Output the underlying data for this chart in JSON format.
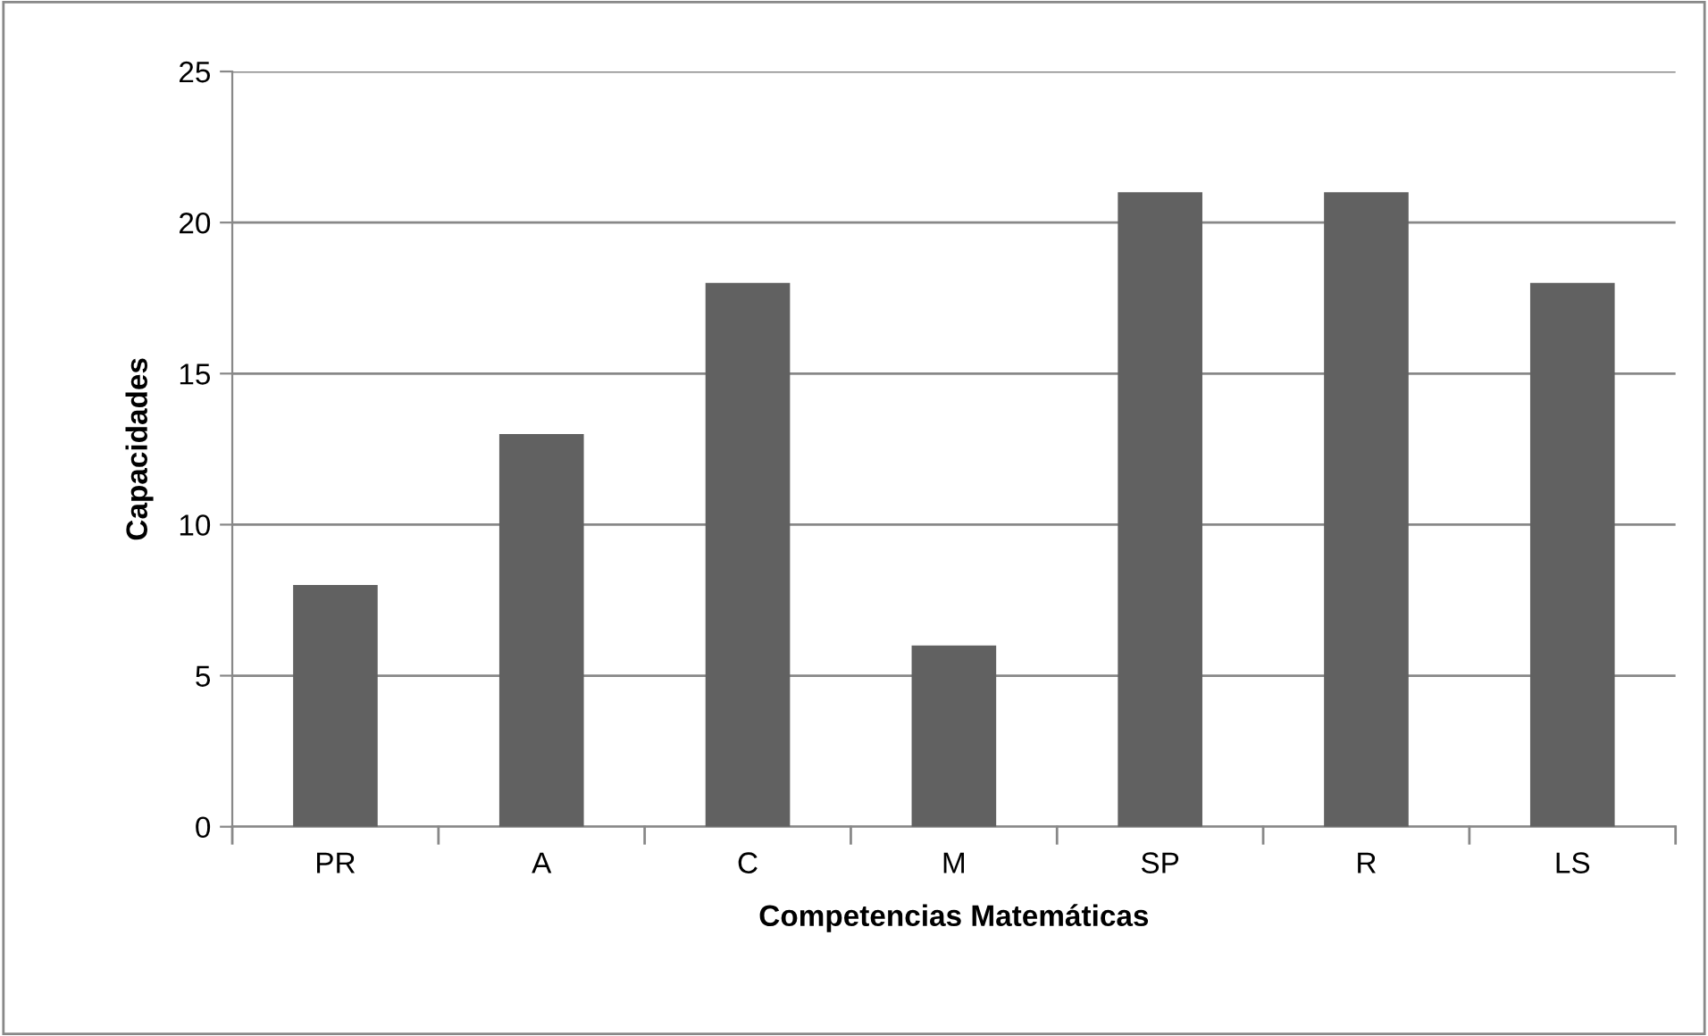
{
  "chart_data": {
    "type": "bar",
    "xlabel": "Competencias Matemáticas",
    "ylabel": "Capacidades",
    "categories": [
      "PR",
      "A",
      "C",
      "M",
      "SP",
      "R",
      "LS"
    ],
    "values": [
      8,
      13,
      18,
      6,
      21,
      21,
      18
    ],
    "color": "#616161",
    "ylim": [
      0,
      25
    ],
    "yticks": [
      0,
      5,
      10,
      15,
      20,
      25
    ],
    "grid": "y",
    "legend": false
  }
}
